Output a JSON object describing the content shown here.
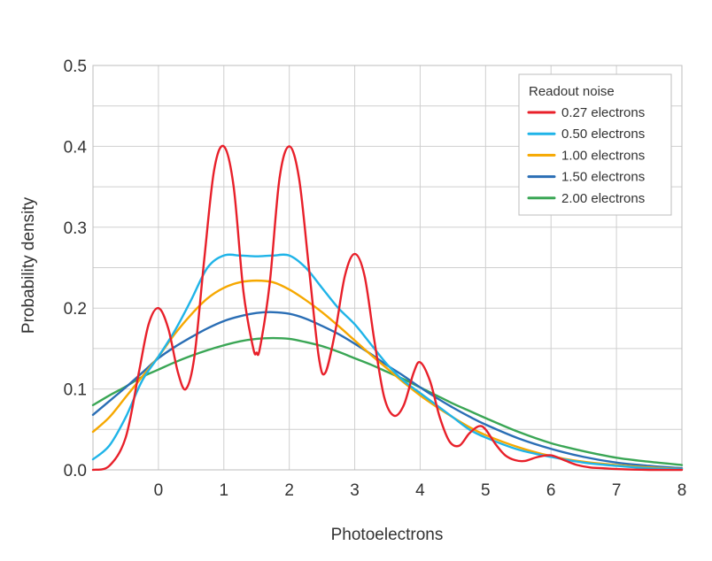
{
  "chart_data": {
    "type": "line",
    "title": "",
    "xlabel": "Photoelectrons",
    "ylabel": "Probability density",
    "xlim": [
      -1,
      8
    ],
    "ylim": [
      0,
      0.5
    ],
    "grid": true,
    "x_ticks": [
      "0",
      "1",
      "2",
      "3",
      "4",
      "5",
      "6",
      "7",
      "8"
    ],
    "y_ticks": [
      "0.0",
      "0.1",
      "0.2",
      "0.3",
      "0.4",
      "0.5"
    ],
    "legend": {
      "title": "Readout noise",
      "position": "top-right"
    },
    "series": [
      {
        "name": "0.27 electrons",
        "color": "#e8202a",
        "x": [
          -1.0,
          -0.75,
          -0.5,
          -0.3,
          -0.15,
          0.0,
          0.15,
          0.3,
          0.42,
          0.55,
          0.7,
          0.85,
          1.0,
          1.15,
          1.3,
          1.45,
          1.5,
          1.55,
          1.7,
          1.85,
          2.0,
          2.15,
          2.3,
          2.45,
          2.55,
          2.7,
          2.85,
          3.0,
          3.15,
          3.3,
          3.45,
          3.6,
          3.75,
          3.9,
          4.0,
          4.15,
          4.3,
          4.45,
          4.6,
          4.75,
          4.9,
          5.0,
          5.15,
          5.3,
          5.45,
          5.6,
          5.8,
          6.0,
          6.2,
          6.4,
          6.6,
          6.8,
          7.0,
          7.5,
          8.0
        ],
        "values": [
          0.0,
          0.005,
          0.04,
          0.12,
          0.18,
          0.2,
          0.175,
          0.12,
          0.1,
          0.14,
          0.26,
          0.37,
          0.4,
          0.35,
          0.22,
          0.15,
          0.145,
          0.15,
          0.23,
          0.36,
          0.4,
          0.36,
          0.25,
          0.14,
          0.12,
          0.17,
          0.24,
          0.267,
          0.24,
          0.16,
          0.09,
          0.067,
          0.08,
          0.12,
          0.133,
          0.11,
          0.065,
          0.035,
          0.03,
          0.045,
          0.054,
          0.05,
          0.032,
          0.018,
          0.012,
          0.011,
          0.016,
          0.018,
          0.012,
          0.006,
          0.003,
          0.002,
          0.001,
          0.0,
          0.0
        ]
      },
      {
        "name": "0.50 electrons",
        "color": "#1fb4e8",
        "x": [
          -1.0,
          -0.75,
          -0.5,
          -0.25,
          0.0,
          0.25,
          0.5,
          0.75,
          1.0,
          1.25,
          1.5,
          1.75,
          2.0,
          2.25,
          2.5,
          2.75,
          3.0,
          3.25,
          3.5,
          3.75,
          4.0,
          4.25,
          4.5,
          4.75,
          5.0,
          5.5,
          6.0,
          6.5,
          7.0,
          7.5,
          8.0
        ],
        "values": [
          0.013,
          0.03,
          0.065,
          0.11,
          0.14,
          0.172,
          0.21,
          0.25,
          0.265,
          0.265,
          0.264,
          0.265,
          0.265,
          0.25,
          0.225,
          0.2,
          0.18,
          0.155,
          0.13,
          0.11,
          0.095,
          0.08,
          0.065,
          0.05,
          0.04,
          0.025,
          0.016,
          0.009,
          0.005,
          0.002,
          0.001
        ]
      },
      {
        "name": "1.00 electrons",
        "color": "#f6a800",
        "x": [
          -1.0,
          -0.75,
          -0.5,
          -0.25,
          0.0,
          0.25,
          0.5,
          0.75,
          1.0,
          1.25,
          1.5,
          1.75,
          2.0,
          2.25,
          2.5,
          2.75,
          3.0,
          3.25,
          3.5,
          3.75,
          4.0,
          4.25,
          4.5,
          4.75,
          5.0,
          5.5,
          6.0,
          6.5,
          7.0,
          7.5,
          8.0
        ],
        "values": [
          0.047,
          0.065,
          0.09,
          0.115,
          0.14,
          0.168,
          0.192,
          0.212,
          0.225,
          0.232,
          0.234,
          0.232,
          0.223,
          0.21,
          0.195,
          0.178,
          0.16,
          0.142,
          0.125,
          0.108,
          0.092,
          0.078,
          0.065,
          0.053,
          0.043,
          0.028,
          0.017,
          0.01,
          0.006,
          0.003,
          0.001
        ]
      },
      {
        "name": "1.50 electrons",
        "color": "#2a6eb5",
        "x": [
          -1.0,
          -0.75,
          -0.5,
          -0.25,
          0.0,
          0.25,
          0.5,
          0.75,
          1.0,
          1.25,
          1.5,
          1.75,
          2.0,
          2.25,
          2.5,
          2.75,
          3.0,
          3.25,
          3.5,
          3.75,
          4.0,
          4.25,
          4.5,
          4.75,
          5.0,
          5.5,
          6.0,
          6.5,
          7.0,
          7.5,
          8.0
        ],
        "values": [
          0.068,
          0.085,
          0.102,
          0.12,
          0.138,
          0.152,
          0.164,
          0.175,
          0.184,
          0.19,
          0.194,
          0.195,
          0.193,
          0.187,
          0.178,
          0.168,
          0.156,
          0.143,
          0.129,
          0.116,
          0.102,
          0.089,
          0.077,
          0.066,
          0.056,
          0.039,
          0.026,
          0.016,
          0.009,
          0.005,
          0.002
        ]
      },
      {
        "name": "2.00 electrons",
        "color": "#3aa655",
        "x": [
          -1.0,
          -0.75,
          -0.5,
          -0.25,
          0.0,
          0.25,
          0.5,
          0.75,
          1.0,
          1.25,
          1.5,
          1.75,
          2.0,
          2.25,
          2.5,
          2.75,
          3.0,
          3.25,
          3.5,
          3.75,
          4.0,
          4.25,
          4.5,
          4.75,
          5.0,
          5.5,
          6.0,
          6.5,
          7.0,
          7.5,
          8.0
        ],
        "values": [
          0.08,
          0.092,
          0.103,
          0.115,
          0.124,
          0.133,
          0.141,
          0.148,
          0.154,
          0.159,
          0.162,
          0.163,
          0.162,
          0.158,
          0.153,
          0.146,
          0.138,
          0.13,
          0.121,
          0.112,
          0.102,
          0.092,
          0.082,
          0.073,
          0.064,
          0.047,
          0.033,
          0.023,
          0.015,
          0.01,
          0.006
        ]
      }
    ]
  }
}
